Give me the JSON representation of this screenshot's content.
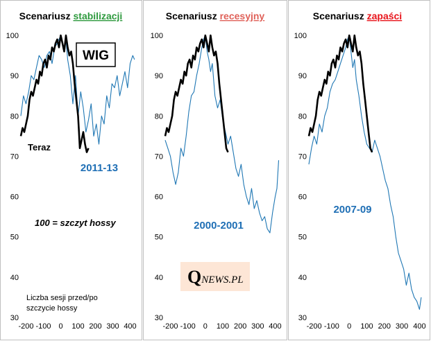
{
  "colors": {
    "blue": "#1f77b4",
    "black": "#000000",
    "green": "#2e9a3e",
    "salmon": "#e0625a",
    "red": "#e8141b",
    "label_blue": "#1f6fb5",
    "logo_bg": "#fde6d6"
  },
  "chart_data": [
    {
      "type": "line",
      "title_prefix": "Scenariusz",
      "title_highlight": "stabilizacji",
      "title_highlight_color": "#2e9a3e",
      "xlim": [
        -230,
        430
      ],
      "ylim": [
        30,
        100
      ],
      "x_ticks": [
        -200,
        -100,
        0,
        100,
        200,
        300,
        400
      ],
      "y_ticks": [
        30,
        40,
        50,
        60,
        70,
        80,
        90,
        100
      ],
      "period_label": "2011-13",
      "annotations": {
        "wig_box": "WIG",
        "now_label": "Teraz",
        "peak_note": "100 = szczyt hossy",
        "x_note_line1": "Liczba sesji przed/po",
        "x_note_line2": "szczycie hossy"
      },
      "series": [
        {
          "color": "#1f77b4",
          "x": [
            -230,
            -215,
            -200,
            -185,
            -170,
            -155,
            -140,
            -125,
            -110,
            -95,
            -80,
            -65,
            -50,
            -35,
            -20,
            -10,
            0,
            10,
            20,
            30,
            40,
            55,
            70,
            85,
            100,
            115,
            130,
            145,
            160,
            175,
            190,
            205,
            220,
            235,
            250,
            265,
            280,
            295,
            310,
            325,
            340,
            355,
            370,
            385,
            400,
            415,
            425
          ],
          "y": [
            80,
            85,
            83,
            86,
            90,
            89,
            92,
            95,
            94,
            92,
            95,
            96,
            93,
            97,
            98,
            99,
            100,
            98,
            96,
            99,
            94,
            90,
            83,
            90,
            80,
            86,
            82,
            76,
            79,
            83,
            75,
            78,
            73,
            80,
            78,
            85,
            82,
            88,
            87,
            90,
            85,
            88,
            91,
            87,
            93,
            95,
            94
          ]
        },
        {
          "color": "#000000",
          "x": [
            -230,
            -220,
            -210,
            -200,
            -190,
            -180,
            -170,
            -160,
            -150,
            -140,
            -130,
            -120,
            -110,
            -100,
            -90,
            -80,
            -70,
            -60,
            -50,
            -40,
            -30,
            -20,
            -10,
            0,
            5,
            10,
            20,
            30,
            40,
            50,
            60,
            70,
            80,
            90,
            100,
            105,
            110,
            120,
            130,
            140,
            150,
            160
          ],
          "y": [
            75,
            77,
            76,
            78,
            80,
            84,
            86,
            85,
            87,
            89,
            88,
            91,
            90,
            93,
            94,
            92,
            95,
            94,
            97,
            96,
            98,
            99,
            97,
            100,
            99,
            98,
            96,
            100,
            97,
            95,
            96,
            93,
            88,
            84,
            80,
            76,
            72,
            74,
            76,
            73,
            71,
            72
          ]
        }
      ]
    },
    {
      "type": "line",
      "title_prefix": "Scenariusz",
      "title_highlight": "recesyjny",
      "title_highlight_color": "#e0625a",
      "xlim": [
        -230,
        430
      ],
      "ylim": [
        30,
        100
      ],
      "x_ticks": [
        -200,
        -100,
        0,
        100,
        200,
        300,
        400
      ],
      "y_ticks": [
        30,
        40,
        50,
        60,
        70,
        80,
        90,
        100
      ],
      "period_label": "2000-2001",
      "logo": {
        "first_letter": "Q",
        "rest": "NEWS.PL"
      },
      "series": [
        {
          "color": "#1f77b4",
          "x": [
            -230,
            -215,
            -200,
            -185,
            -170,
            -155,
            -140,
            -125,
            -110,
            -95,
            -80,
            -65,
            -50,
            -35,
            -20,
            -10,
            0,
            10,
            20,
            30,
            40,
            55,
            70,
            85,
            100,
            115,
            130,
            145,
            160,
            175,
            190,
            205,
            220,
            235,
            250,
            265,
            280,
            295,
            310,
            325,
            340,
            355,
            370,
            385,
            400,
            410,
            420
          ],
          "y": [
            74,
            72,
            70,
            66,
            63,
            66,
            72,
            70,
            75,
            81,
            85,
            86,
            90,
            93,
            97,
            99,
            100,
            96,
            94,
            91,
            93,
            85,
            82,
            84,
            79,
            76,
            73,
            75,
            71,
            67,
            65,
            68,
            63,
            60,
            58,
            62,
            57,
            59,
            56,
            54,
            55,
            52,
            51,
            56,
            60,
            62,
            69
          ]
        },
        {
          "color": "#000000",
          "x": [
            -230,
            -220,
            -210,
            -200,
            -190,
            -180,
            -170,
            -160,
            -150,
            -140,
            -130,
            -120,
            -110,
            -100,
            -90,
            -80,
            -70,
            -60,
            -50,
            -40,
            -30,
            -20,
            -10,
            0,
            5,
            10,
            20,
            30,
            40,
            50,
            60,
            70,
            80,
            90,
            100,
            110,
            120,
            130
          ],
          "y": [
            75,
            77,
            76,
            78,
            80,
            84,
            86,
            85,
            87,
            89,
            88,
            91,
            90,
            93,
            94,
            92,
            95,
            94,
            97,
            96,
            98,
            99,
            97,
            100,
            99,
            98,
            96,
            100,
            97,
            95,
            96,
            93,
            88,
            84,
            80,
            76,
            72,
            71
          ]
        }
      ]
    },
    {
      "type": "line",
      "title_prefix": "Scenariusz",
      "title_highlight": "zapaści",
      "title_highlight_color": "#e8141b",
      "xlim": [
        -230,
        430
      ],
      "ylim": [
        30,
        100
      ],
      "x_ticks": [
        -200,
        -100,
        0,
        100,
        200,
        300,
        400
      ],
      "y_ticks": [
        30,
        40,
        50,
        60,
        70,
        80,
        90,
        100
      ],
      "period_label": "2007-09",
      "series": [
        {
          "color": "#1f77b4",
          "x": [
            -230,
            -215,
            -200,
            -185,
            -170,
            -155,
            -140,
            -125,
            -110,
            -95,
            -80,
            -65,
            -50,
            -35,
            -20,
            -10,
            0,
            10,
            20,
            30,
            40,
            55,
            70,
            85,
            100,
            115,
            130,
            145,
            160,
            175,
            190,
            205,
            220,
            235,
            250,
            265,
            280,
            295,
            310,
            325,
            340,
            355,
            370,
            385,
            400,
            410
          ],
          "y": [
            68,
            72,
            75,
            73,
            78,
            76,
            80,
            82,
            86,
            88,
            89,
            91,
            93,
            95,
            97,
            99,
            100,
            96,
            92,
            94,
            89,
            85,
            80,
            76,
            73,
            72,
            71,
            74,
            72,
            70,
            67,
            64,
            62,
            58,
            55,
            50,
            46,
            44,
            42,
            38,
            41,
            37,
            35,
            34,
            32,
            35
          ]
        },
        {
          "color": "#000000",
          "x": [
            -230,
            -220,
            -210,
            -200,
            -190,
            -180,
            -170,
            -160,
            -150,
            -140,
            -130,
            -120,
            -110,
            -100,
            -90,
            -80,
            -70,
            -60,
            -50,
            -40,
            -30,
            -20,
            -10,
            0,
            5,
            10,
            20,
            30,
            40,
            50,
            60,
            70,
            80,
            90,
            100,
            110,
            120,
            130
          ],
          "y": [
            75,
            77,
            76,
            78,
            80,
            84,
            86,
            85,
            87,
            89,
            88,
            91,
            90,
            93,
            94,
            92,
            95,
            94,
            97,
            96,
            98,
            99,
            97,
            100,
            99,
            98,
            96,
            100,
            97,
            95,
            96,
            93,
            88,
            84,
            80,
            76,
            72,
            71
          ]
        }
      ]
    }
  ]
}
